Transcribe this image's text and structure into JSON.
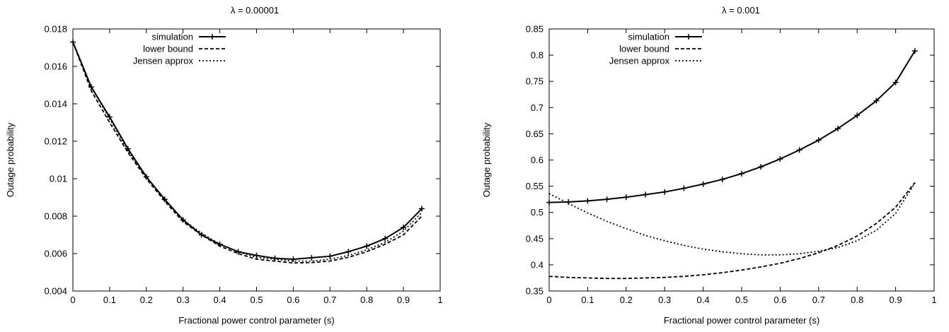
{
  "chart_data": [
    {
      "type": "line",
      "title": "λ = 0.00001",
      "xlabel": "Fractional power control parameter (s)",
      "ylabel": "Outage probability",
      "xlim": [
        0,
        1
      ],
      "ylim": [
        0.004,
        0.018
      ],
      "xticks": [
        0,
        0.1,
        0.2,
        0.3,
        0.4,
        0.5,
        0.6,
        0.7,
        0.8,
        0.9,
        1
      ],
      "xtick_labels": [
        "0",
        "0.1",
        "0.2",
        "0.3",
        "0.4",
        "0.5",
        "0.6",
        "0.7",
        "0.8",
        "0.9",
        "1"
      ],
      "yticks": [
        0.004,
        0.006,
        0.008,
        0.01,
        0.012,
        0.014,
        0.016,
        0.018
      ],
      "ytick_labels": [
        "0.004",
        "0.006",
        "0.008",
        "0.01",
        "0.012",
        "0.014",
        "0.016",
        "0.018"
      ],
      "grid": false,
      "legend_position": "top-left",
      "x": [
        0,
        0.05,
        0.1,
        0.15,
        0.2,
        0.25,
        0.3,
        0.35,
        0.4,
        0.45,
        0.5,
        0.55,
        0.6,
        0.65,
        0.7,
        0.75,
        0.8,
        0.85,
        0.9,
        0.95
      ],
      "series": [
        {
          "name": "simulation",
          "style": "solid-markers",
          "values": [
            0.0173,
            0.0149,
            0.0133,
            0.0116,
            0.0101,
            0.0089,
            0.0078,
            0.007,
            0.0065,
            0.0061,
            0.0059,
            0.00575,
            0.0057,
            0.00578,
            0.00586,
            0.0061,
            0.0064,
            0.0068,
            0.0074,
            0.0084
          ]
        },
        {
          "name": "lower bound",
          "style": "dashed",
          "values": [
            0.0173,
            0.0147,
            0.013,
            0.0114,
            0.01,
            0.0088,
            0.0077,
            0.007,
            0.0064,
            0.006,
            0.0057,
            0.0056,
            0.0055,
            0.00552,
            0.0056,
            0.0058,
            0.0061,
            0.0065,
            0.007,
            0.008
          ]
        },
        {
          "name": "Jensen approx",
          "style": "dotted",
          "values": [
            0.0173,
            0.0149,
            0.0132,
            0.0115,
            0.0101,
            0.0089,
            0.0078,
            0.0071,
            0.0065,
            0.0061,
            0.0058,
            0.0057,
            0.0056,
            0.0056,
            0.0057,
            0.0059,
            0.0062,
            0.0066,
            0.0072,
            0.0082
          ]
        }
      ]
    },
    {
      "type": "line",
      "title": "λ = 0.001",
      "xlabel": "Fractional power control parameter (s)",
      "ylabel": "Outage probability",
      "xlim": [
        0,
        1
      ],
      "ylim": [
        0.35,
        0.85
      ],
      "xticks": [
        0,
        0.1,
        0.2,
        0.3,
        0.4,
        0.5,
        0.6,
        0.7,
        0.8,
        0.9,
        1
      ],
      "xtick_labels": [
        "0",
        "0.1",
        "0.2",
        "0.3",
        "0.4",
        "0.5",
        "0.6",
        "0.7",
        "0.8",
        "0.9",
        "1"
      ],
      "yticks": [
        0.35,
        0.4,
        0.45,
        0.5,
        0.55,
        0.6,
        0.65,
        0.7,
        0.75,
        0.8,
        0.85
      ],
      "ytick_labels": [
        "0.35",
        "0.4",
        "0.45",
        "0.5",
        "0.55",
        "0.6",
        "0.65",
        "0.7",
        "0.75",
        "0.8",
        "0.85"
      ],
      "grid": false,
      "legend_position": "top-left",
      "x": [
        0,
        0.05,
        0.1,
        0.15,
        0.2,
        0.25,
        0.3,
        0.35,
        0.4,
        0.45,
        0.5,
        0.55,
        0.6,
        0.65,
        0.7,
        0.75,
        0.8,
        0.85,
        0.9,
        0.95
      ],
      "series": [
        {
          "name": "simulation",
          "style": "solid-markers",
          "values": [
            0.519,
            0.52,
            0.522,
            0.525,
            0.529,
            0.534,
            0.539,
            0.546,
            0.554,
            0.563,
            0.574,
            0.587,
            0.602,
            0.619,
            0.638,
            0.66,
            0.685,
            0.713,
            0.748,
            0.808
          ]
        },
        {
          "name": "lower bound",
          "style": "dashed",
          "values": [
            0.378,
            0.376,
            0.375,
            0.374,
            0.374,
            0.375,
            0.376,
            0.378,
            0.381,
            0.385,
            0.39,
            0.396,
            0.403,
            0.412,
            0.423,
            0.437,
            0.455,
            0.479,
            0.51,
            0.557
          ]
        },
        {
          "name": "Jensen approx",
          "style": "dotted",
          "values": [
            0.536,
            0.517,
            0.499,
            0.483,
            0.469,
            0.456,
            0.446,
            0.437,
            0.43,
            0.425,
            0.421,
            0.419,
            0.419,
            0.421,
            0.426,
            0.433,
            0.446,
            0.466,
            0.498,
            0.556
          ]
        }
      ]
    }
  ]
}
